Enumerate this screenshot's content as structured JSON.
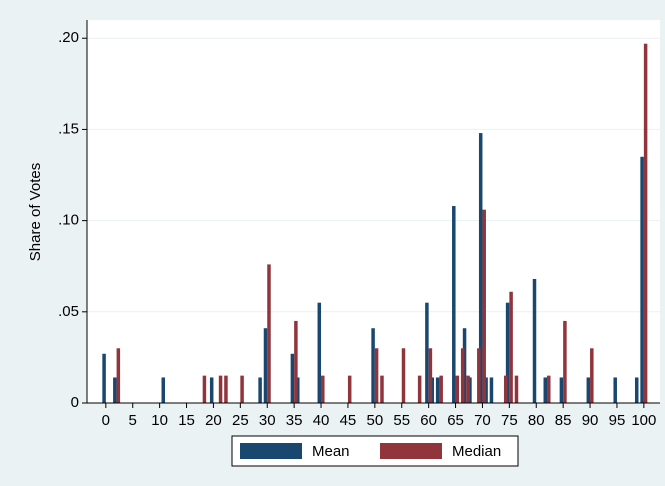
{
  "chart_data": {
    "type": "bar",
    "ylabel": "Share of Votes",
    "xlim": [
      -3.5,
      103
    ],
    "xticks": [
      0,
      5,
      10,
      15,
      20,
      25,
      30,
      35,
      40,
      45,
      50,
      55,
      60,
      65,
      70,
      75,
      80,
      85,
      90,
      95,
      100
    ],
    "ylim": [
      0,
      0.21
    ],
    "yticks": [
      {
        "value": 0,
        "label": "0"
      },
      {
        "value": 0.05,
        "label": ".05"
      },
      {
        "value": 0.1,
        "label": ".10"
      },
      {
        "value": 0.15,
        "label": ".15"
      },
      {
        "value": 0.2,
        "label": ".20"
      }
    ],
    "grid": true,
    "legend": "bottom",
    "series": [
      {
        "name": "Mean",
        "color": "#1a476f",
        "x": [
          0,
          2,
          11,
          20,
          29,
          30,
          35,
          36,
          40,
          50,
          60,
          61,
          62,
          65,
          67,
          68,
          70,
          71,
          72,
          75,
          80,
          82,
          85,
          90,
          95,
          99,
          100
        ],
        "values": [
          0.027,
          0.014,
          0.014,
          0.014,
          0.014,
          0.041,
          0.027,
          0.014,
          0.055,
          0.041,
          0.055,
          0.014,
          0.014,
          0.108,
          0.041,
          0.014,
          0.148,
          0.014,
          0.014,
          0.055,
          0.068,
          0.014,
          0.014,
          0.014,
          0.014,
          0.014,
          0.135
        ]
      },
      {
        "name": "Median",
        "color": "#90353b",
        "x": [
          2,
          18,
          21,
          22,
          25,
          30,
          35,
          40,
          45,
          50,
          51,
          55,
          58,
          60,
          62,
          65,
          66,
          67,
          69,
          70,
          74,
          75,
          76,
          82,
          85,
          90,
          100
        ],
        "values": [
          0.03,
          0.015,
          0.015,
          0.015,
          0.015,
          0.076,
          0.045,
          0.015,
          0.015,
          0.03,
          0.015,
          0.03,
          0.015,
          0.03,
          0.015,
          0.015,
          0.03,
          0.015,
          0.03,
          0.106,
          0.015,
          0.061,
          0.015,
          0.015,
          0.045,
          0.03,
          0.197
        ]
      }
    ]
  }
}
